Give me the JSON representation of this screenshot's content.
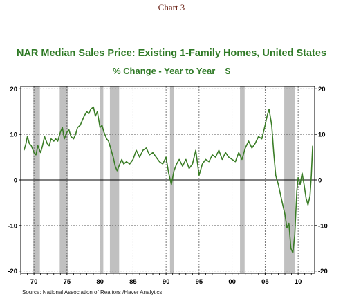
{
  "header": {
    "chart_number": "Chart 3"
  },
  "chart_data": {
    "type": "line",
    "title": "NAR Median Sales Price: Existing 1-Family Homes, United States",
    "subtitle": "% Change - Year to Year",
    "unit": "$",
    "source": "Source:  National Association of Realtors /Haver Analytics",
    "x_tick_labels": [
      "70",
      "75",
      "80",
      "85",
      "90",
      "95",
      "00",
      "05",
      "10"
    ],
    "x_tick_years": [
      1970,
      1975,
      1980,
      1985,
      1990,
      1995,
      2000,
      2005,
      2010
    ],
    "xlim": [
      1968.0,
      2012.5
    ],
    "y_tick_labels": [
      "20",
      "10",
      "0",
      "-10",
      "-20"
    ],
    "y_tick_values": [
      20,
      10,
      0,
      -10,
      -20
    ],
    "ylim": [
      -20.5,
      20.5
    ],
    "grid": true,
    "line_color": "#3a7d26",
    "recession_color": "#c0c0c0",
    "recessions": [
      [
        1969.9,
        1970.9
      ],
      [
        1973.9,
        1975.2
      ],
      [
        1980.0,
        1980.5
      ],
      [
        1981.5,
        1982.9
      ],
      [
        1990.6,
        1991.2
      ],
      [
        2001.2,
        2001.9
      ],
      [
        2007.9,
        2009.5
      ]
    ],
    "series": [
      {
        "x": [
          1968.5,
          1968.8,
          1969.0,
          1969.3,
          1969.6,
          1970.0,
          1970.3,
          1970.6,
          1971.0,
          1971.3,
          1971.6,
          1972.0,
          1972.3,
          1972.6,
          1973.0,
          1973.3,
          1973.6,
          1974.0,
          1974.3,
          1974.6,
          1975.0,
          1975.3,
          1975.6,
          1976.0,
          1976.3,
          1976.6,
          1977.0,
          1977.3,
          1977.6,
          1978.0,
          1978.3,
          1978.6,
          1979.0,
          1979.3,
          1979.6,
          1980.0,
          1980.3,
          1980.6,
          1981.0,
          1981.3,
          1981.6,
          1982.0,
          1982.3,
          1982.6,
          1983.0,
          1983.3,
          1983.6,
          1984.0,
          1984.5,
          1985.0,
          1985.5,
          1986.0,
          1986.5,
          1987.0,
          1987.5,
          1988.0,
          1988.5,
          1989.0,
          1989.5,
          1990.0,
          1990.4,
          1990.8,
          1991.2,
          1991.6,
          1992.0,
          1992.5,
          1993.0,
          1993.5,
          1994.0,
          1994.5,
          1995.0,
          1995.5,
          1996.0,
          1996.5,
          1997.0,
          1997.5,
          1998.0,
          1998.5,
          1999.0,
          1999.5,
          2000.0,
          2000.5,
          2001.0,
          2001.5,
          2002.0,
          2002.5,
          2003.0,
          2003.5,
          2004.0,
          2004.5,
          2005.0,
          2005.3,
          2005.6,
          2006.0,
          2006.3,
          2006.6,
          2007.0,
          2007.3,
          2007.6,
          2008.0,
          2008.3,
          2008.6,
          2008.9,
          2009.2,
          2009.5,
          2009.8,
          2010.0,
          2010.3,
          2010.6,
          2010.9,
          2011.2,
          2011.5,
          2011.8,
          2012.0,
          2012.2
        ],
        "y": [
          6.5,
          8.0,
          9.5,
          8.0,
          7.5,
          6.0,
          5.5,
          7.5,
          6.0,
          7.5,
          9.5,
          8.0,
          7.5,
          9.0,
          8.5,
          9.0,
          8.5,
          10.5,
          11.5,
          9.0,
          10.5,
          11.0,
          9.5,
          9.0,
          10.0,
          11.5,
          12.0,
          13.0,
          14.0,
          15.0,
          14.5,
          15.5,
          16.0,
          14.0,
          15.0,
          11.5,
          12.0,
          10.5,
          9.0,
          8.5,
          7.0,
          5.0,
          3.0,
          2.0,
          3.5,
          4.5,
          3.5,
          4.0,
          3.5,
          4.5,
          6.5,
          5.0,
          6.5,
          7.0,
          5.5,
          6.0,
          5.0,
          4.0,
          3.5,
          5.0,
          1.5,
          -1.0,
          2.0,
          3.5,
          4.5,
          3.0,
          4.5,
          2.5,
          3.5,
          6.5,
          1.0,
          3.5,
          4.5,
          4.0,
          5.5,
          5.0,
          6.5,
          4.5,
          6.0,
          5.0,
          4.5,
          4.0,
          6.0,
          4.5,
          7.0,
          8.5,
          7.0,
          8.0,
          9.5,
          9.0,
          12.0,
          14.0,
          15.5,
          12.0,
          6.0,
          1.0,
          -1.0,
          -3.0,
          -5.0,
          -7.5,
          -10.5,
          -9.5,
          -15.0,
          -16.0,
          -12.0,
          -2.5,
          0.5,
          -1.0,
          1.5,
          -1.0,
          -4.0,
          -5.5,
          -3.5,
          1.0,
          7.5
        ]
      }
    ]
  }
}
